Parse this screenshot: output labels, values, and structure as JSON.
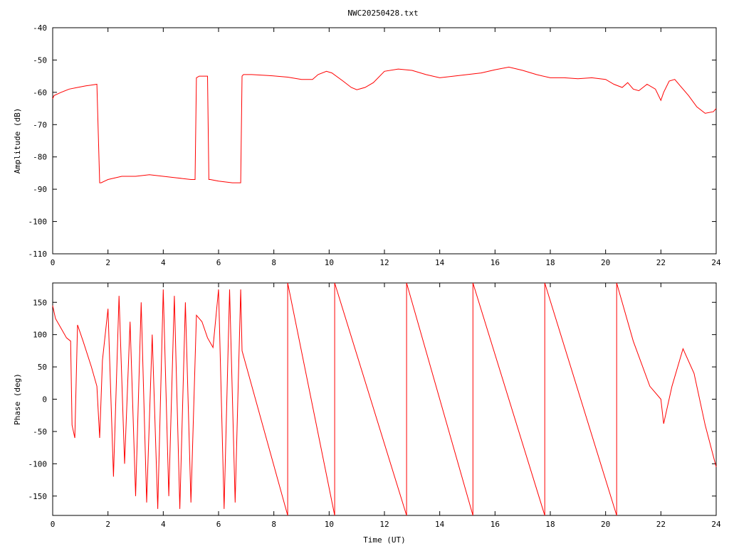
{
  "title": "NWC20250428.txt",
  "chart_data": [
    {
      "type": "line",
      "ylabel": "Amplitude (dB)",
      "xlabel": "",
      "xlim": [
        0,
        24
      ],
      "ylim": [
        -110,
        -40
      ],
      "x_ticks": [
        "0",
        "2",
        "4",
        "6",
        "8",
        "10",
        "12",
        "14",
        "16",
        "18",
        "20",
        "22",
        "24"
      ],
      "y_ticks": [
        "-40",
        "-50",
        "-60",
        "-70",
        "-80",
        "-90",
        "-100",
        "-110"
      ],
      "y_tick_values": [
        -40,
        -50,
        -60,
        -70,
        -80,
        -90,
        -100,
        -110
      ],
      "series": [
        {
          "color": "#ff0000",
          "x": [
            0,
            0.05,
            0.3,
            0.6,
            0.9,
            1.2,
            1.6,
            1.7,
            1.75,
            2.0,
            2.5,
            3.0,
            3.5,
            4.0,
            4.5,
            5.0,
            5.15,
            5.2,
            5.3,
            5.6,
            5.65,
            5.7,
            6.0,
            6.5,
            6.8,
            6.85,
            6.9,
            7.2,
            7.8,
            8.5,
            9.0,
            9.4,
            9.6,
            9.9,
            10.1,
            10.5,
            10.8,
            11.0,
            11.3,
            11.6,
            12.0,
            12.5,
            13.0,
            13.5,
            14.0,
            14.5,
            15.0,
            15.5,
            16.0,
            16.5,
            17.0,
            17.5,
            18.0,
            18.5,
            19.0,
            19.5,
            20.0,
            20.3,
            20.6,
            20.8,
            21.0,
            21.2,
            21.5,
            21.8,
            22.0,
            22.1,
            22.3,
            22.5,
            22.7,
            23.0,
            23.3,
            23.6,
            23.9,
            24.0
          ],
          "values": [
            -62,
            -61,
            -60,
            -59,
            -58.5,
            -58,
            -57.5,
            -88,
            -88,
            -87,
            -86,
            -86,
            -85.5,
            -86,
            -86.5,
            -87,
            -87,
            -55.5,
            -55,
            -55,
            -87,
            -87,
            -87.5,
            -88,
            -88,
            -55,
            -54.5,
            -54.5,
            -54.8,
            -55.3,
            -56,
            -56,
            -54.5,
            -53.5,
            -54,
            -56.5,
            -58.5,
            -59.2,
            -58.5,
            -57,
            -53.5,
            -52.8,
            -53.2,
            -54.5,
            -55.5,
            -55,
            -54.5,
            -54,
            -53,
            -52.2,
            -53.2,
            -54.5,
            -55.5,
            -55.5,
            -55.8,
            -55.5,
            -56,
            -57.5,
            -58.5,
            -57,
            -59,
            -59.5,
            -57.5,
            -59,
            -62.5,
            -60,
            -56.5,
            -56,
            -58,
            -61,
            -64.5,
            -66.5,
            -66,
            -65
          ]
        }
      ]
    },
    {
      "type": "line",
      "ylabel": "Phase (deg)",
      "xlabel": "Time (UT)",
      "xlim": [
        0,
        24
      ],
      "ylim": [
        -180,
        180
      ],
      "x_ticks": [
        "0",
        "2",
        "4",
        "6",
        "8",
        "10",
        "12",
        "14",
        "16",
        "18",
        "20",
        "22",
        "24"
      ],
      "y_ticks": [
        "150",
        "100",
        "50",
        "0",
        "-50",
        "-100",
        "-150"
      ],
      "y_tick_values": [
        150,
        100,
        50,
        0,
        -50,
        -100,
        -150
      ],
      "series": [
        {
          "color": "#ff0000",
          "x": [
            0,
            0.1,
            0.3,
            0.5,
            0.65,
            0.7,
            0.8,
            0.9,
            1.1,
            1.4,
            1.6,
            1.7,
            1.8,
            2.0,
            2.2,
            2.4,
            2.6,
            2.8,
            3.0,
            3.2,
            3.4,
            3.6,
            3.8,
            4.0,
            4.2,
            4.4,
            4.6,
            4.8,
            5.0,
            5.2,
            5.4,
            5.6,
            5.8,
            6.0,
            6.2,
            6.4,
            6.6,
            6.8,
            6.85,
            8.5,
            8.5,
            10.2,
            10.2,
            12.8,
            12.8,
            15.2,
            15.2,
            17.8,
            17.8,
            20.4,
            20.4,
            21.0,
            21.6,
            22.0,
            22.1,
            22.4,
            22.8,
            23.2,
            23.6,
            24.0
          ],
          "values": [
            145,
            125,
            110,
            95,
            90,
            -40,
            -60,
            115,
            90,
            50,
            20,
            -60,
            60,
            140,
            -120,
            160,
            -100,
            120,
            -150,
            150,
            -160,
            100,
            -170,
            170,
            -150,
            160,
            -170,
            150,
            -160,
            130,
            120,
            95,
            80,
            170,
            -170,
            170,
            -160,
            170,
            75,
            -180,
            180,
            -180,
            180,
            -180,
            180,
            -180,
            180,
            -180,
            180,
            -180,
            180,
            90,
            20,
            0,
            -38,
            20,
            78,
            40,
            -40,
            -105
          ]
        }
      ]
    }
  ]
}
